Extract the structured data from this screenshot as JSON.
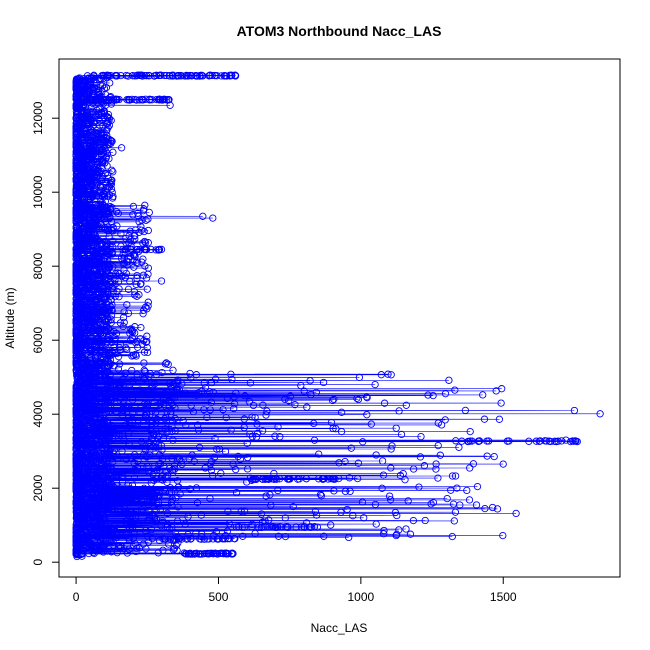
{
  "chart_data": {
    "type": "scatter",
    "title": "ATOM3 Northbound Nacc_LAS",
    "xlabel": "Nacc_LAS",
    "ylabel": "Altitude (m)",
    "xlim": [
      -60,
      1910
    ],
    "ylim": [
      -400,
      13600
    ],
    "xticks": [
      0,
      500,
      1000,
      1500
    ],
    "yticks": [
      0,
      2000,
      4000,
      6000,
      8000,
      10000,
      12000
    ],
    "series_color": "#0000ff",
    "marker": "open-circle",
    "connected": true,
    "anchor_points": [
      {
        "x": 1840,
        "y": 4010
      },
      {
        "x": 1750,
        "y": 4100
      },
      {
        "x": 1760,
        "y": 3260
      },
      {
        "x": 1720,
        "y": 3300
      },
      {
        "x": 1545,
        "y": 1320
      },
      {
        "x": 1500,
        "y": 2650
      },
      {
        "x": 1480,
        "y": 1440
      },
      {
        "x": 1330,
        "y": 4650
      },
      {
        "x": 1050,
        "y": 4800
      },
      {
        "x": 1010,
        "y": 1200
      },
      {
        "x": 960,
        "y": 2280
      },
      {
        "x": 930,
        "y": 1350
      },
      {
        "x": 870,
        "y": 700
      },
      {
        "x": 810,
        "y": 4190
      },
      {
        "x": 560,
        "y": 13150
      },
      {
        "x": 480,
        "y": 9300
      },
      {
        "x": 445,
        "y": 9350
      },
      {
        "x": 400,
        "y": 5100
      },
      {
        "x": 380,
        "y": 250
      },
      {
        "x": 330,
        "y": 12350
      },
      {
        "x": 300,
        "y": 7600
      },
      {
        "x": 250,
        "y": 5800
      },
      {
        "x": 160,
        "y": 11200
      },
      {
        "x": 110,
        "y": 9000
      },
      {
        "x": 80,
        "y": 6500
      },
      {
        "x": 40,
        "y": 3000
      },
      {
        "x": 20,
        "y": 500
      },
      {
        "x": 10,
        "y": 200
      }
    ]
  }
}
